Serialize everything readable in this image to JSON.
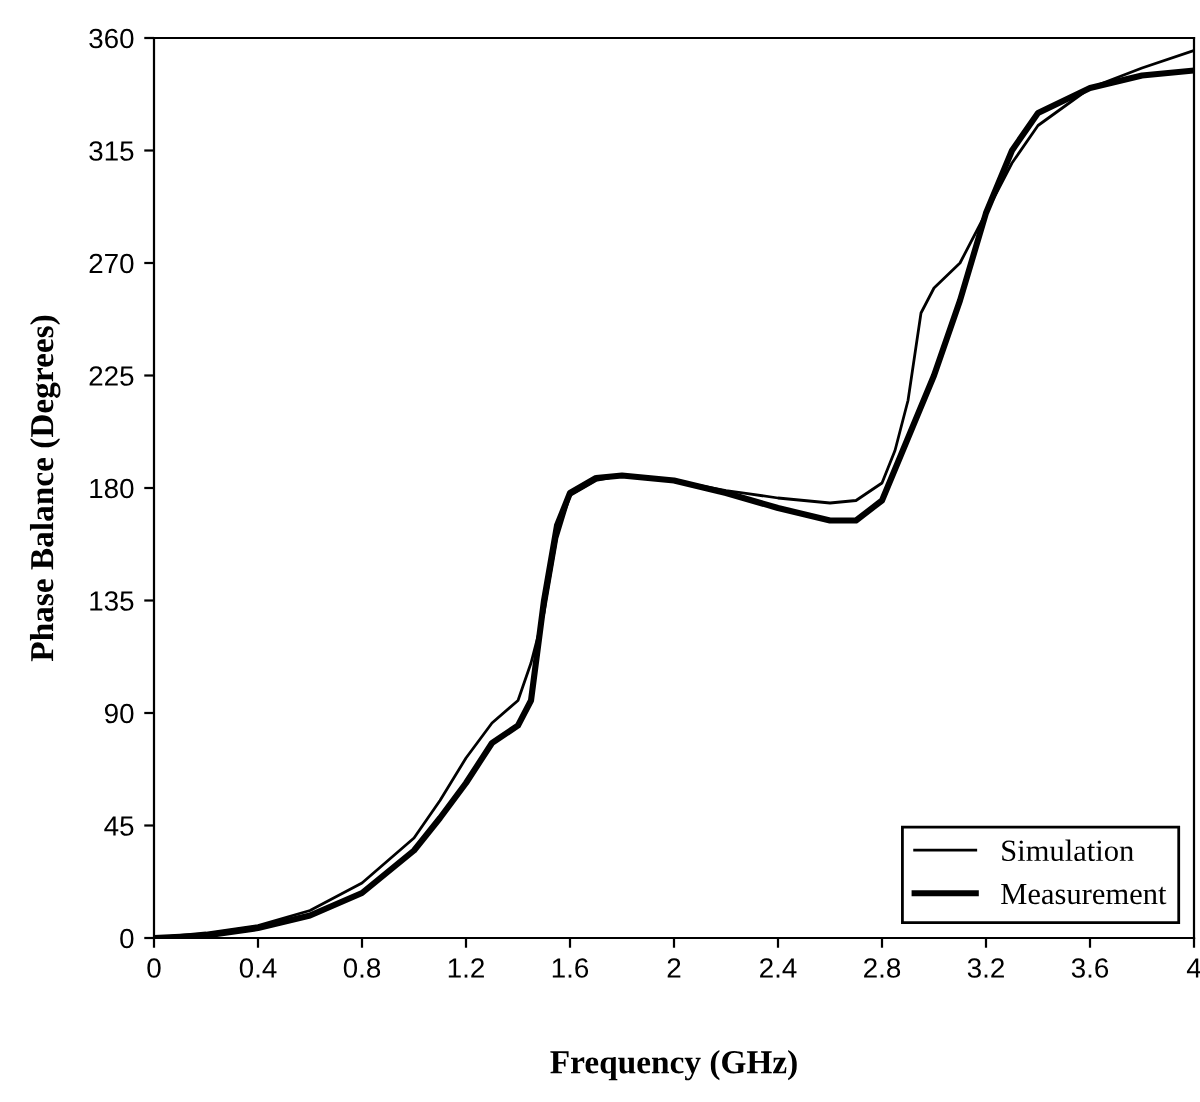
{
  "chart_data": {
    "type": "line",
    "xlabel": "Frequency (GHz)",
    "ylabel": "Phase Balance (Degrees)",
    "xlim": [
      0,
      4
    ],
    "xticks": [
      0,
      0.4,
      0.8,
      1.2,
      1.6,
      2,
      2.4,
      2.8,
      3.2,
      3.6,
      4
    ],
    "ylim": [
      0,
      360
    ],
    "yticks": [
      0,
      45,
      90,
      135,
      180,
      225,
      270,
      315,
      360
    ],
    "grid": false,
    "legend": "bottom right",
    "marker": "none",
    "line_style": "solid",
    "series": [
      {
        "name": "Simulation",
        "color": "#000000",
        "x": [
          0,
          0.2,
          0.4,
          0.6,
          0.8,
          1.0,
          1.1,
          1.2,
          1.3,
          1.4,
          1.45,
          1.5,
          1.55,
          1.6,
          1.7,
          1.8,
          2.0,
          2.2,
          2.4,
          2.6,
          2.7,
          2.8,
          2.85,
          2.9,
          2.95,
          3.0,
          3.1,
          3.2,
          3.3,
          3.4,
          3.6,
          3.8,
          4.0
        ],
        "values": [
          0,
          2,
          5,
          11,
          22,
          40,
          55,
          72,
          86,
          95,
          110,
          130,
          160,
          177,
          183,
          185,
          183,
          179,
          176,
          174,
          175,
          182,
          195,
          215,
          250,
          260,
          270,
          290,
          310,
          325,
          340,
          348,
          355
        ]
      },
      {
        "name": "Measurement",
        "color": "#000000",
        "x": [
          0,
          0.2,
          0.4,
          0.6,
          0.8,
          1.0,
          1.1,
          1.2,
          1.3,
          1.4,
          1.45,
          1.5,
          1.55,
          1.6,
          1.7,
          1.8,
          2.0,
          2.2,
          2.4,
          2.6,
          2.7,
          2.8,
          2.9,
          3.0,
          3.1,
          3.2,
          3.3,
          3.4,
          3.6,
          3.8,
          4.0
        ],
        "values": [
          0,
          1,
          4,
          9,
          18,
          35,
          48,
          62,
          78,
          85,
          95,
          135,
          165,
          178,
          184,
          185,
          183,
          178,
          172,
          167,
          167,
          175,
          200,
          225,
          255,
          290,
          315,
          330,
          340,
          345,
          347
        ]
      }
    ]
  }
}
